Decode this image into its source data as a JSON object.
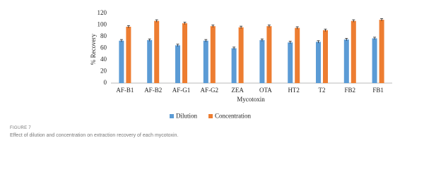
{
  "chart_data": {
    "type": "bar",
    "categories": [
      "AF-B1",
      "AF-B2",
      "AF-G1",
      "AF-G2",
      "ZEA",
      "OTA",
      "HT2",
      "T2",
      "FB2",
      "FB1"
    ],
    "series": [
      {
        "name": "Dilution",
        "color": "#5b9bd5",
        "values": [
          73,
          74,
          65,
          73,
          60,
          74,
          70,
          71,
          75,
          77
        ],
        "errors": [
          2,
          2,
          2,
          2,
          2,
          2,
          2,
          2,
          2,
          2
        ]
      },
      {
        "name": "Concentration",
        "color": "#ed7d31",
        "values": [
          97,
          107,
          103,
          98,
          96,
          98,
          95,
          91,
          107,
          109
        ],
        "errors": [
          2,
          2,
          2,
          2,
          2,
          2,
          2,
          2,
          2,
          2
        ]
      }
    ],
    "x_label": "Mycotoxin",
    "y_label": "% Recovery",
    "ylim": [
      0,
      120
    ],
    "yticks": [
      0,
      20,
      40,
      60,
      80,
      100,
      120
    ],
    "grid": false,
    "legend": "bottom"
  },
  "caption": {
    "label": "FIGURE 7",
    "text": "Effect of dilution and concentration on extraction recovery of each mycotoxin."
  }
}
